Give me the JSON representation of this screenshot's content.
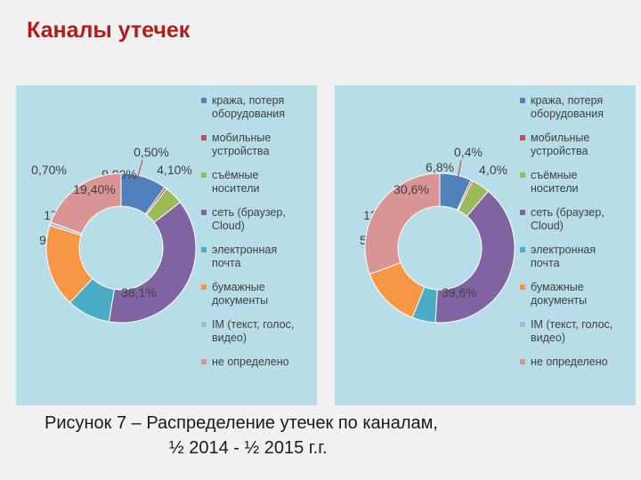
{
  "page": {
    "title": "Каналы утечек",
    "caption_line1": "Рисунок 7 – Распределение утечек по каналам,",
    "caption_line2": "½ 2014 - ½ 2015 г.г."
  },
  "colors": {
    "panel_bg": "#b7dde8",
    "title": "#b61a1a"
  },
  "chart_data": [
    {
      "type": "pie",
      "donut": true,
      "legend_position": "right",
      "categories": [
        "кража, потеря оборудования",
        "мобильные устройства",
        "съёмные носители",
        "сеть (браузер, Cloud)",
        "электронная почта",
        "бумажные документы",
        "IM (текст, голос, видео)",
        "не определено"
      ],
      "legend_lines": [
        [
          "кража, потеря",
          "оборудования"
        ],
        [
          "мобильные",
          "устройства"
        ],
        [
          "съёмные",
          "носители"
        ],
        [
          "сеть (браузер,",
          "Cloud)"
        ],
        [
          "электронная",
          "почта"
        ],
        [
          "бумажные",
          "документы"
        ],
        [
          "IM (текст, голос,",
          "видео)"
        ],
        [
          "не определено"
        ]
      ],
      "colors": [
        "#4f81bd",
        "#c0504d",
        "#9bbb59",
        "#8064a2",
        "#4bacc6",
        "#f79646",
        "#a5b8dc",
        "#d99594"
      ],
      "values": [
        9.9,
        0.5,
        4.1,
        38.1,
        9.4,
        17.9,
        0.7,
        19.4
      ],
      "labels": [
        "9,90%",
        "0,50%",
        "4,10%",
        "38,1%",
        "9,40%",
        "17,90%",
        "0,70%",
        "19,40%"
      ]
    },
    {
      "type": "pie",
      "donut": true,
      "legend_position": "right",
      "categories": [
        "кража, потеря оборудования",
        "мобильные устройства",
        "съёмные носители",
        "сеть (браузер, Cloud)",
        "электронная почта",
        "бумажные документы",
        "IM (текст, голос, видео)",
        "не определено"
      ],
      "legend_lines": [
        [
          "кража, потеря",
          "оборудования"
        ],
        [
          "мобильные",
          "устройства"
        ],
        [
          "съёмные",
          "носители"
        ],
        [
          "сеть (браузер,",
          "Cloud)"
        ],
        [
          "электронная",
          "почта"
        ],
        [
          "бумажные",
          "документы"
        ],
        [
          "IM (текст, голос,",
          "видео)"
        ],
        [
          "не определено"
        ]
      ],
      "colors": [
        "#4f81bd",
        "#c0504d",
        "#9bbb59",
        "#8064a2",
        "#4bacc6",
        "#f79646",
        "#a5b8dc",
        "#d99594"
      ],
      "values": [
        6.8,
        0.4,
        4.0,
        39.6,
        5.0,
        13.3,
        0.0,
        30.6
      ],
      "labels": [
        "6,8%",
        "0,4%",
        "4,0%",
        "39,6%",
        "5,0%",
        "13,3%",
        "",
        "30,6%"
      ]
    }
  ]
}
